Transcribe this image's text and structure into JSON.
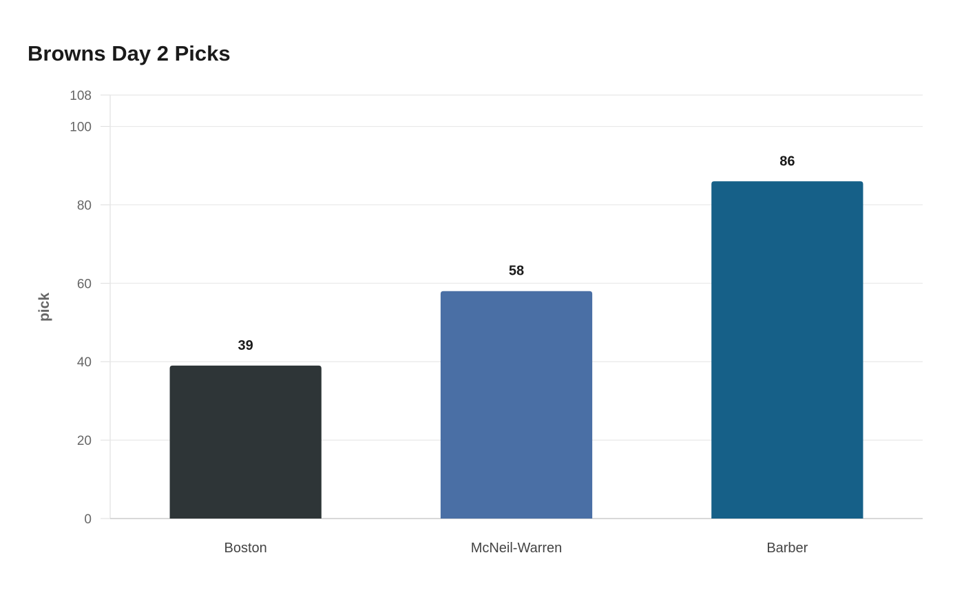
{
  "chart_data": {
    "type": "bar",
    "title": "Browns Day 2 Picks",
    "xlabel": "",
    "ylabel": "pick",
    "categories": [
      "Boston",
      "McNeil-Warren",
      "Barber"
    ],
    "values": [
      39,
      58,
      86
    ],
    "colors": [
      "#2e3537",
      "#4a6fa5",
      "#166088"
    ],
    "ylim": [
      0,
      108
    ],
    "yticks": [
      0,
      20,
      40,
      60,
      80,
      100,
      108
    ],
    "grid": true,
    "legend": "none",
    "data_labels": true
  }
}
